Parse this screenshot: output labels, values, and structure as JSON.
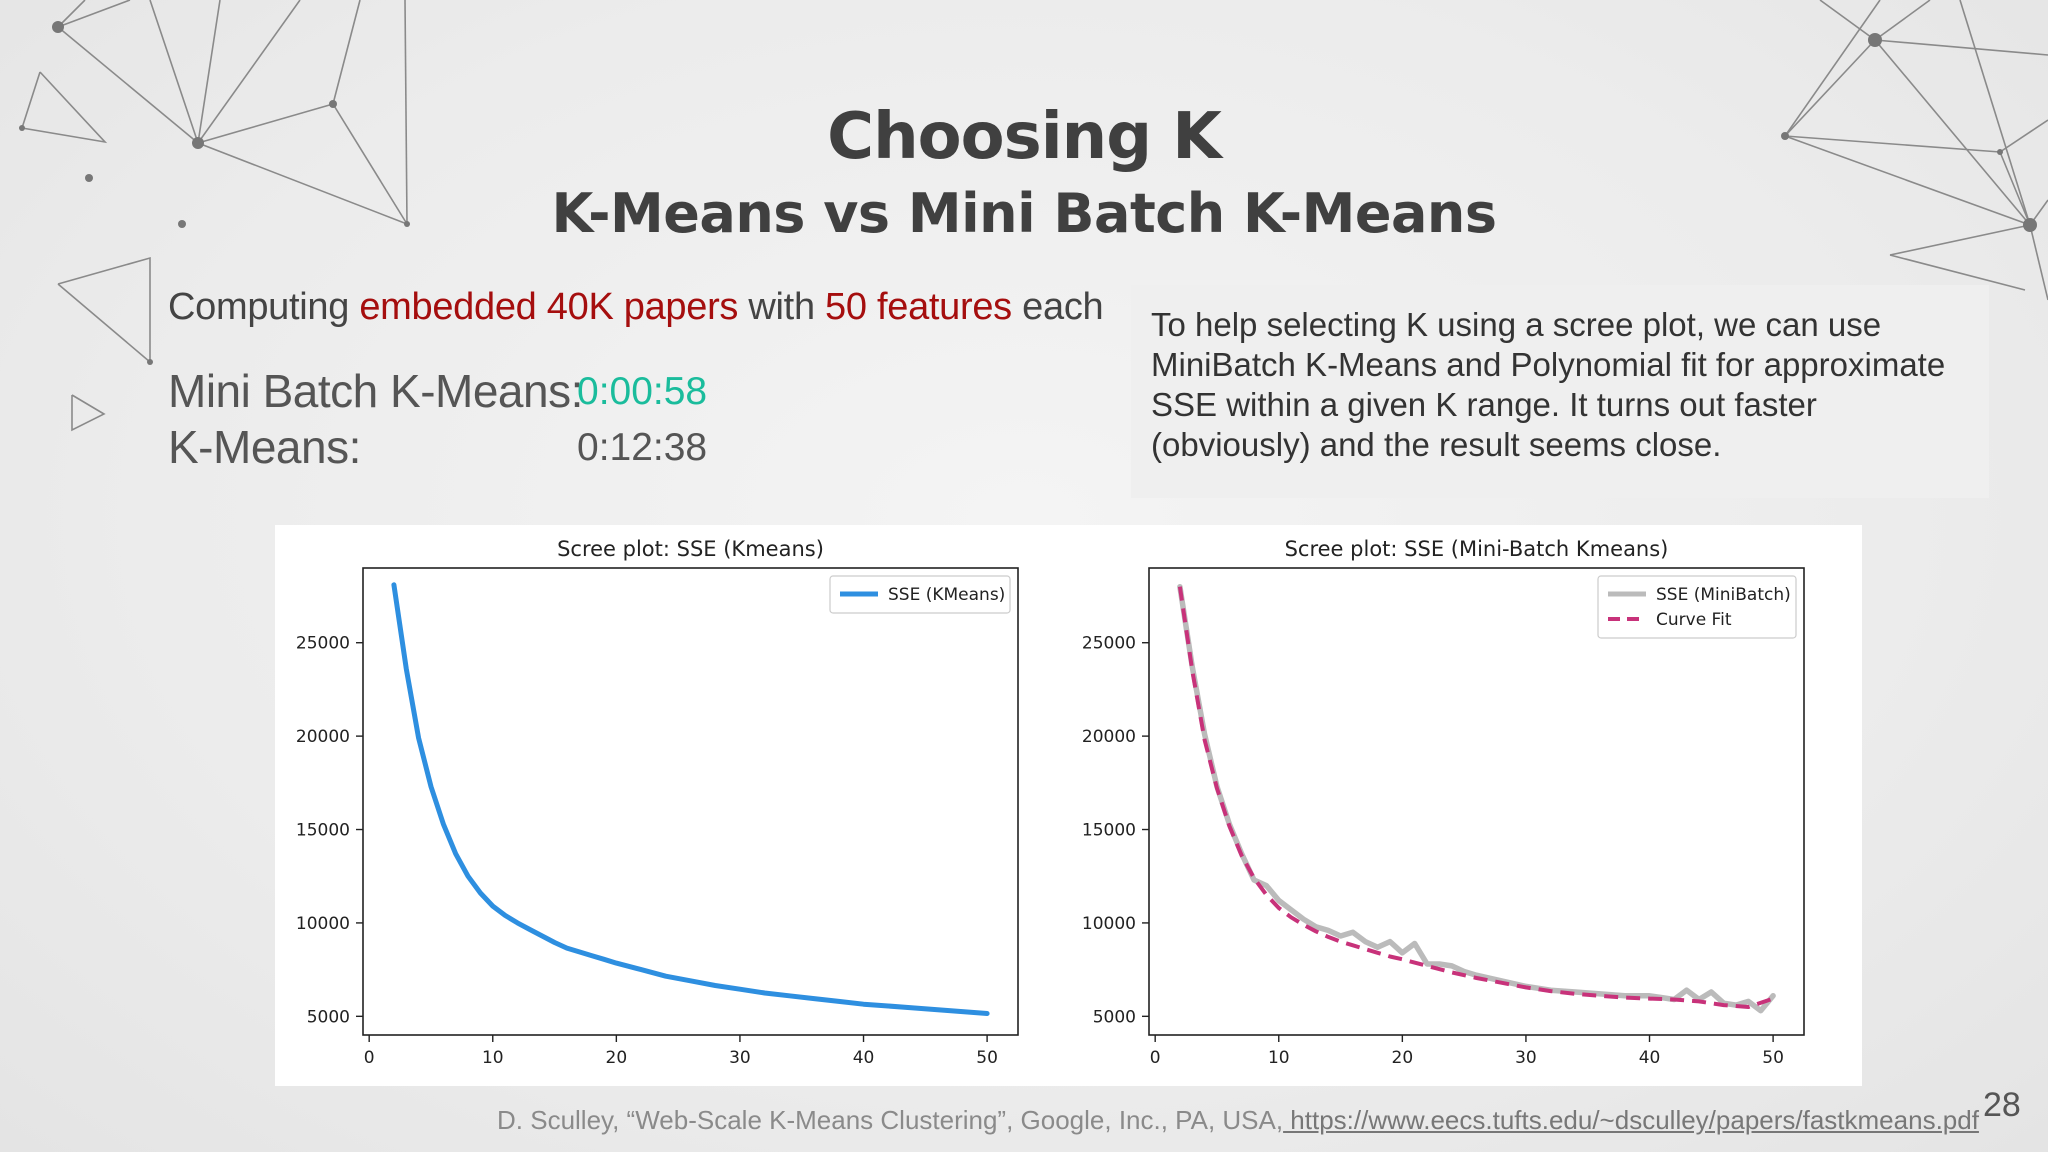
{
  "slide": {
    "title": "Choosing K",
    "subtitle": "K-Means vs Mini Batch K-Means",
    "intro": {
      "p1": "Computing ",
      "h1": "embedded 40K papers",
      "p2": " with ",
      "h2": "50 features",
      "p3": " each"
    },
    "timings": {
      "minibatch_label": "Mini Batch K-Means:",
      "minibatch_value": "0:00:58",
      "kmeans_label": "K-Means:",
      "kmeans_value": "0:12:38"
    },
    "note": "To help selecting K using a scree plot, we can use MiniBatch K-Means and Polynomial fit for approximate SSE within a given K range. It turns out faster (obviously) and the result seems close.",
    "reference_text": "D. Sculley, “Web-Scale K-Means Clustering”, Google, Inc., PA, USA,",
    "reference_link": " https://www.eecs.tufts.edu/~dsculley/papers/fastkmeans.pdf",
    "page_number": "28",
    "colors": {
      "highlight": "#a50e0e",
      "minibatch_time": "#1abc9c",
      "kmeans_line": "#2e8fe0",
      "minibatch_line": "#bbbbbb",
      "curve_fit": "#c8327a"
    }
  },
  "chart_data": [
    {
      "type": "line",
      "title": "Scree plot: SSE (Kmeans)",
      "xlabel": "",
      "ylabel": "",
      "xlim": [
        -0.5,
        52.5
      ],
      "ylim": [
        4000,
        29000
      ],
      "xticks": [
        0,
        10,
        20,
        30,
        40,
        50
      ],
      "yticks": [
        5000,
        10000,
        15000,
        20000,
        25000
      ],
      "grid": false,
      "legend": "top-right",
      "series": [
        {
          "name": "SSE (KMeans)",
          "color": "#2e8fe0",
          "dash": "solid",
          "x": [
            2,
            3,
            4,
            5,
            6,
            7,
            8,
            9,
            10,
            11,
            12,
            13,
            14,
            15,
            16,
            17,
            18,
            19,
            20,
            22,
            24,
            26,
            28,
            30,
            32,
            34,
            36,
            38,
            40,
            42,
            44,
            46,
            48,
            50
          ],
          "y": [
            28100,
            23600,
            19900,
            17300,
            15300,
            13700,
            12500,
            11600,
            10900,
            10400,
            10000,
            9650,
            9300,
            8950,
            8650,
            8450,
            8250,
            8050,
            7850,
            7500,
            7150,
            6900,
            6650,
            6450,
            6250,
            6100,
            5950,
            5800,
            5650,
            5550,
            5450,
            5350,
            5250,
            5150
          ]
        }
      ]
    },
    {
      "type": "line",
      "title": "Scree plot: SSE (Mini-Batch Kmeans)",
      "xlabel": "",
      "ylabel": "",
      "xlim": [
        -0.5,
        52.5
      ],
      "ylim": [
        4000,
        29000
      ],
      "xticks": [
        0,
        10,
        20,
        30,
        40,
        50
      ],
      "yticks": [
        5000,
        10000,
        15000,
        20000,
        25000
      ],
      "grid": false,
      "legend": "top-right",
      "series": [
        {
          "name": "SSE (MiniBatch)",
          "color": "#bbbbbb",
          "dash": "solid",
          "x": [
            2,
            3,
            4,
            5,
            6,
            7,
            8,
            9,
            10,
            11,
            12,
            13,
            14,
            15,
            16,
            17,
            18,
            19,
            20,
            21,
            22,
            23,
            24,
            25,
            26,
            28,
            30,
            32,
            34,
            36,
            38,
            40,
            41,
            42,
            43,
            44,
            45,
            46,
            47,
            48,
            49,
            50
          ],
          "y": [
            28000,
            23700,
            20100,
            17300,
            15300,
            13700,
            12300,
            12000,
            11200,
            10700,
            10200,
            9800,
            9600,
            9300,
            9500,
            9000,
            8700,
            9000,
            8400,
            8900,
            7800,
            7800,
            7700,
            7400,
            7200,
            6900,
            6600,
            6400,
            6300,
            6200,
            6100,
            6100,
            6000,
            5900,
            6400,
            5900,
            6300,
            5700,
            5600,
            5800,
            5300,
            6100
          ]
        },
        {
          "name": "Curve Fit",
          "color": "#c8327a",
          "dash": "dashed",
          "x": [
            2,
            3,
            4,
            5,
            6,
            7,
            8,
            9,
            10,
            11,
            12,
            13,
            14,
            15,
            16,
            17,
            18,
            19,
            20,
            22,
            24,
            26,
            28,
            30,
            32,
            34,
            36,
            38,
            40,
            42,
            44,
            46,
            48,
            50
          ],
          "y": [
            28000,
            23500,
            19800,
            17200,
            15200,
            13600,
            12400,
            11500,
            10800,
            10300,
            9900,
            9550,
            9250,
            9000,
            8800,
            8600,
            8400,
            8200,
            8050,
            7700,
            7350,
            7050,
            6800,
            6550,
            6350,
            6200,
            6100,
            6000,
            5950,
            5900,
            5800,
            5600,
            5500,
            5950
          ]
        }
      ]
    }
  ]
}
